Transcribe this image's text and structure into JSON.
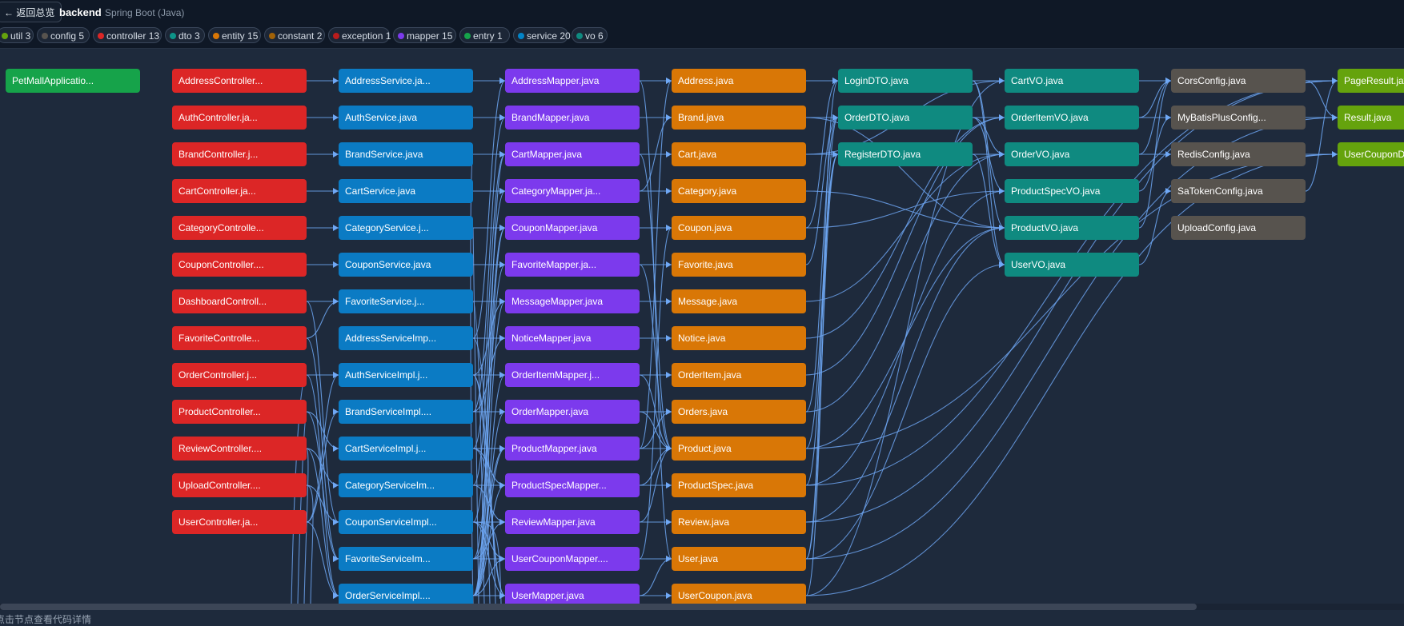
{
  "header": {
    "back_label": "← 返回总览",
    "project_name": "backend",
    "project_type": "Spring Boot (Java)"
  },
  "legend": [
    {
      "label": "util 3",
      "color": "#65a30d"
    },
    {
      "label": "config 5",
      "color": "#57534e"
    },
    {
      "label": "controller 13",
      "color": "#dc2626"
    },
    {
      "label": "dto 3",
      "color": "#0d9488"
    },
    {
      "label": "entity 15",
      "color": "#d97706"
    },
    {
      "label": "constant 2",
      "color": "#a16207"
    },
    {
      "label": "exception 1",
      "color": "#b91c1c"
    },
    {
      "label": "mapper 15",
      "color": "#7c3aed"
    },
    {
      "label": "entry 1",
      "color": "#16a34a"
    },
    {
      "label": "service 20",
      "color": "#0284c7"
    },
    {
      "label": "vo 6",
      "color": "#0f8a80"
    }
  ],
  "colors": {
    "entry": "#16a34a",
    "controller": "#dc2626",
    "service": "#0b7bc4",
    "mapper": "#7c3aed",
    "entity": "#d97706",
    "dto": "#0f8a80",
    "vo": "#0f8a80",
    "config": "#57534e",
    "util": "#65a30d",
    "edge": "#6fa8f5",
    "background": "#1e2a3c"
  },
  "columns": [
    {
      "type": "entry",
      "nodes": [
        "PetMallApplicatio..."
      ]
    },
    {
      "type": "controller",
      "nodes": [
        "AddressController...",
        "AuthController.ja...",
        "BrandController.j...",
        "CartController.ja...",
        "CategoryControlle...",
        "CouponController....",
        "DashboardControll...",
        "FavoriteControlle...",
        "OrderController.j...",
        "ProductController...",
        "ReviewController....",
        "UploadController....",
        "UserController.ja..."
      ]
    },
    {
      "type": "service",
      "nodes": [
        "AddressService.ja...",
        "AuthService.java",
        "BrandService.java",
        "CartService.java",
        "CategoryService.j...",
        "CouponService.java",
        "FavoriteService.j...",
        "AddressServiceImp...",
        "AuthServiceImpl.j...",
        "BrandServiceImpl....",
        "CartServiceImpl.j...",
        "CategoryServiceIm...",
        "CouponServiceImpl...",
        "FavoriteServiceIm...",
        "OrderServiceImpl...."
      ]
    },
    {
      "type": "mapper",
      "nodes": [
        "AddressMapper.java",
        "BrandMapper.java",
        "CartMapper.java",
        "CategoryMapper.ja...",
        "CouponMapper.java",
        "FavoriteMapper.ja...",
        "MessageMapper.java",
        "NoticeMapper.java",
        "OrderItemMapper.j...",
        "OrderMapper.java",
        "ProductMapper.java",
        "ProductSpecMapper...",
        "ReviewMapper.java",
        "UserCouponMapper....",
        "UserMapper.java"
      ]
    },
    {
      "type": "entity",
      "nodes": [
        "Address.java",
        "Brand.java",
        "Cart.java",
        "Category.java",
        "Coupon.java",
        "Favorite.java",
        "Message.java",
        "Notice.java",
        "OrderItem.java",
        "Orders.java",
        "Product.java",
        "ProductSpec.java",
        "Review.java",
        "User.java",
        "UserCoupon.java"
      ]
    },
    {
      "type": "dto",
      "nodes": [
        "LoginDTO.java",
        "OrderDTO.java",
        "RegisterDTO.java"
      ]
    },
    {
      "type": "vo",
      "nodes": [
        "CartVO.java",
        "OrderItemVO.java",
        "OrderVO.java",
        "ProductSpecVO.java",
        "ProductVO.java",
        "UserVO.java"
      ]
    },
    {
      "type": "config",
      "nodes": [
        "CorsConfig.java",
        "MyBatisPlusConfig...",
        "RedisConfig.java",
        "SaTokenConfig.java",
        "UploadConfig.java"
      ]
    },
    {
      "type": "util",
      "nodes": [
        "PageResult.java",
        "Result.java",
        "UserCouponDTO.java"
      ]
    }
  ],
  "footer": {
    "hint": "点击节点查看代码详情"
  }
}
